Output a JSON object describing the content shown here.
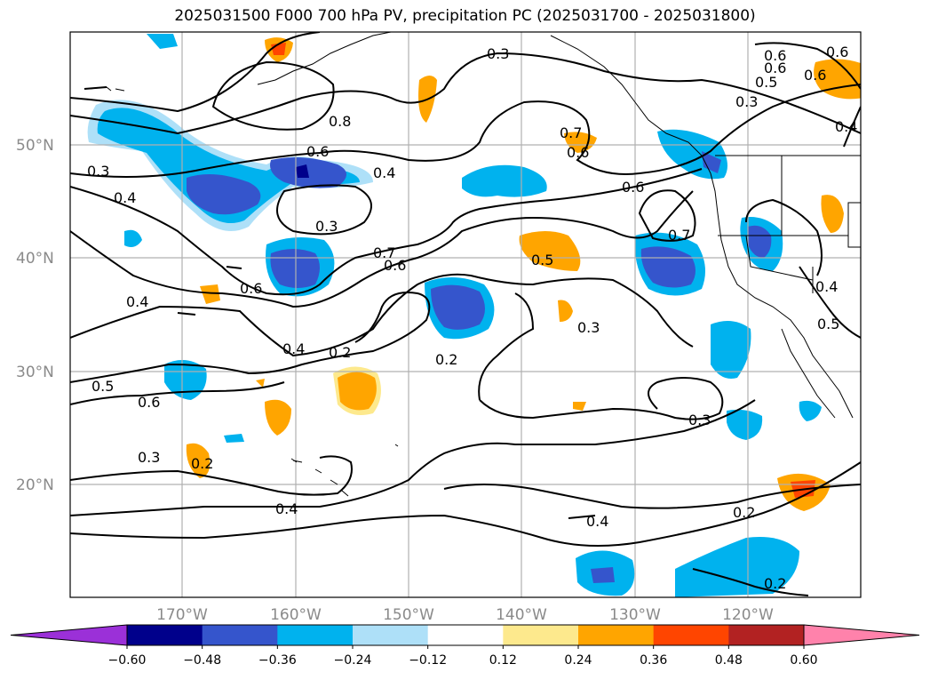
{
  "title": "2025031500 F000 700 hPa PV, precipitation PC (2025031700 - 2025031800)",
  "latitude_labels": [
    "50°N",
    "40°N",
    "30°N",
    "20°N"
  ],
  "longitude_labels": [
    "170°W",
    "160°W",
    "150°W",
    "140°W",
    "130°W",
    "120°W"
  ],
  "colorbar": {
    "ticks": [
      "−0.60",
      "−0.48",
      "−0.36",
      "−0.24",
      "−0.12",
      "0.12",
      "0.24",
      "0.36",
      "0.48",
      "0.60"
    ],
    "colors": [
      "#9b30d8",
      "#00008b",
      "#3555cc",
      "#00b2ee",
      "#aee0f8",
      "#ffffff",
      "#fde98d",
      "#ffa500",
      "#ff4500",
      "#b22222",
      "#ff82ab"
    ]
  },
  "contour_labels": [
    "0.3",
    "0.8",
    "0.6",
    "0.6",
    "0.6",
    "0.4",
    "0.7",
    "0.6",
    "0.3",
    "0.7",
    "0.7",
    "0.6",
    "0.5",
    "0.6",
    "0.4",
    "0.3",
    "0.3",
    "0.4",
    "0.6",
    "0.4",
    "0.5",
    "0.2",
    "0.2",
    "0.4",
    "0.3",
    "0.5",
    "0.6",
    "0.3",
    "0.2",
    "0.4",
    "0.2",
    "0.4",
    "0.2",
    "0.3",
    "0.5",
    "0.6",
    "0.6",
    "0.4"
  ],
  "colors": {
    "coastline": "#000000",
    "grid": "#b0b0b0",
    "contour": "#000000"
  }
}
